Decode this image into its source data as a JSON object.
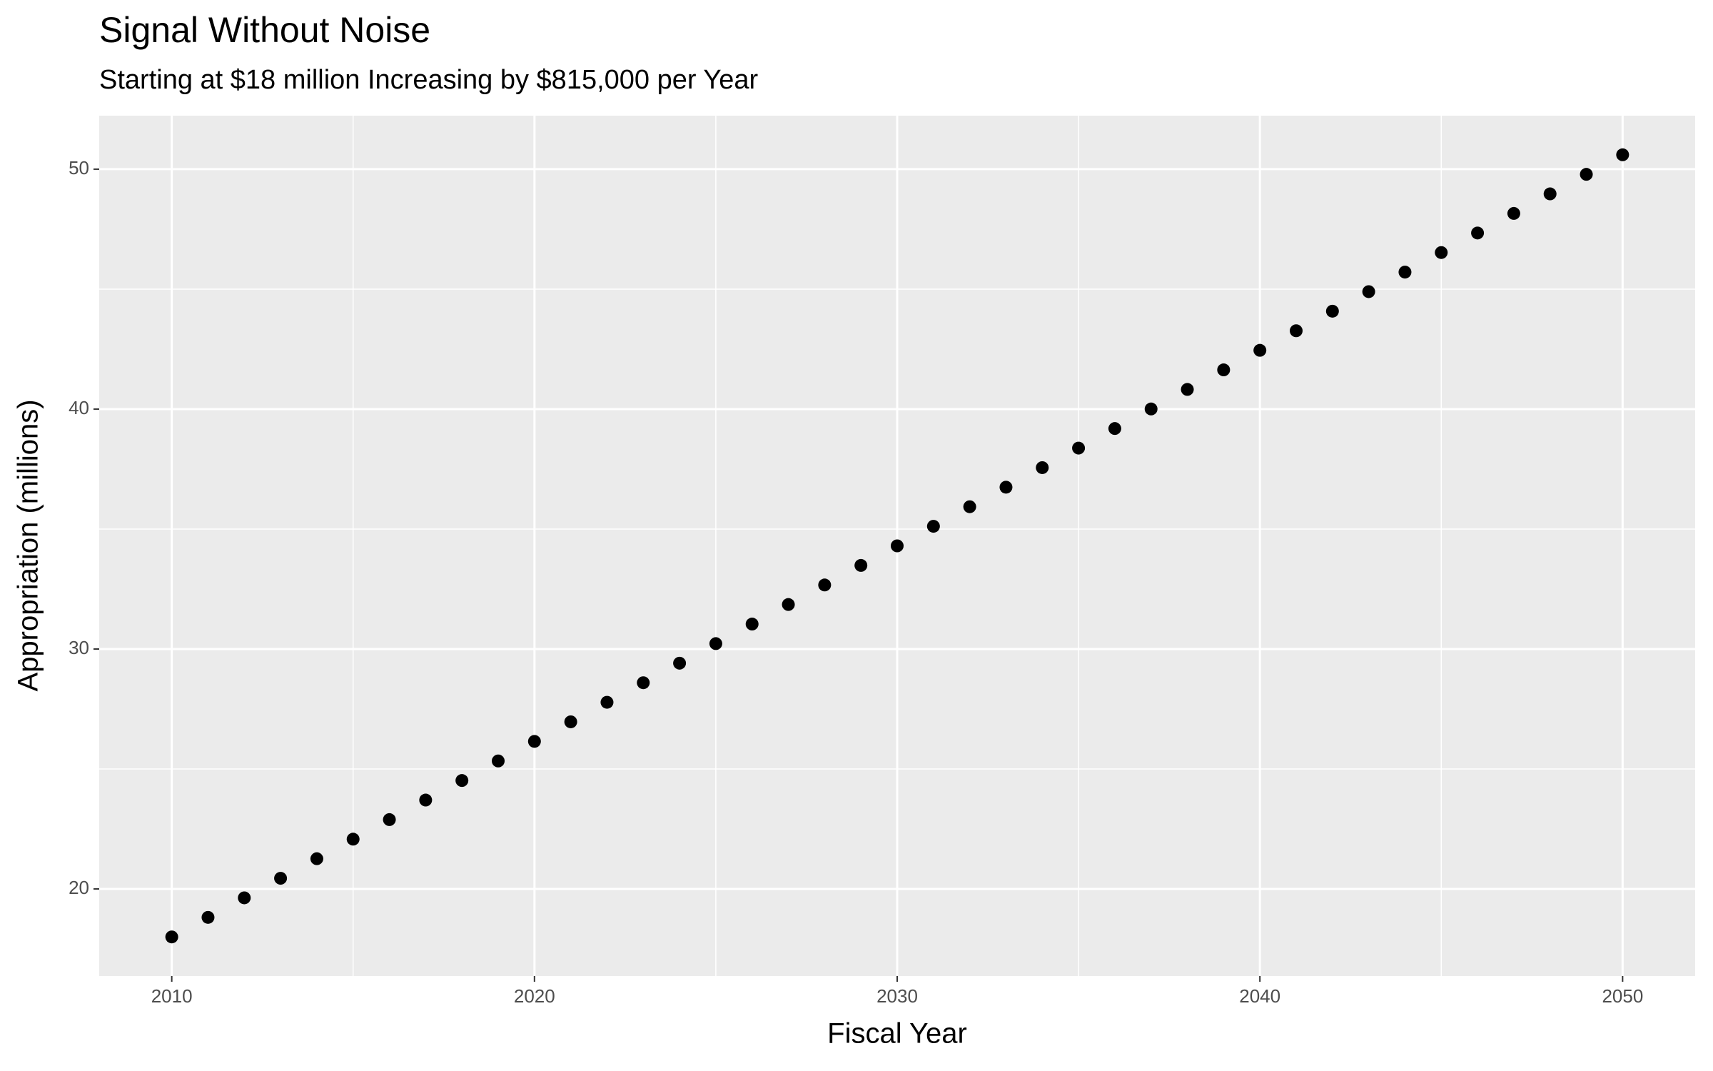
{
  "chart_data": {
    "type": "scatter",
    "title": "Signal Without Noise",
    "subtitle": "Starting at $18 million Increasing by $815,000 per Year",
    "x_label": "Fiscal Year",
    "y_label": "Appropriation (millions)",
    "x": [
      2010,
      2011,
      2012,
      2013,
      2014,
      2015,
      2016,
      2017,
      2018,
      2019,
      2020,
      2021,
      2022,
      2023,
      2024,
      2025,
      2026,
      2027,
      2028,
      2029,
      2030,
      2031,
      2032,
      2033,
      2034,
      2035,
      2036,
      2037,
      2038,
      2039,
      2040,
      2041,
      2042,
      2043,
      2044,
      2045,
      2046,
      2047,
      2048,
      2049,
      2050
    ],
    "values": [
      18,
      18.815,
      19.63,
      20.445,
      21.26,
      22.075,
      22.89,
      23.705,
      24.52,
      25.335,
      26.15,
      26.965,
      27.78,
      28.595,
      29.41,
      30.225,
      31.04,
      31.855,
      32.67,
      33.485,
      34.3,
      35.115,
      35.93,
      36.745,
      37.56,
      38.375,
      39.19,
      40.005,
      40.82,
      41.635,
      42.45,
      43.265,
      44.08,
      44.895,
      45.71,
      46.525,
      47.34,
      48.155,
      48.97,
      49.785,
      50.6
    ],
    "color": "#000000",
    "xlim": [
      2008,
      2052
    ],
    "ylim": [
      16.37,
      52.23
    ],
    "xticks": [
      2010,
      2020,
      2030,
      2040,
      2050
    ],
    "yticks": [
      20,
      30,
      40,
      50
    ],
    "x_minor_ticks": [
      2015,
      2025,
      2035,
      2045
    ],
    "y_minor_ticks": [
      25,
      35,
      45
    ],
    "grid": true
  }
}
